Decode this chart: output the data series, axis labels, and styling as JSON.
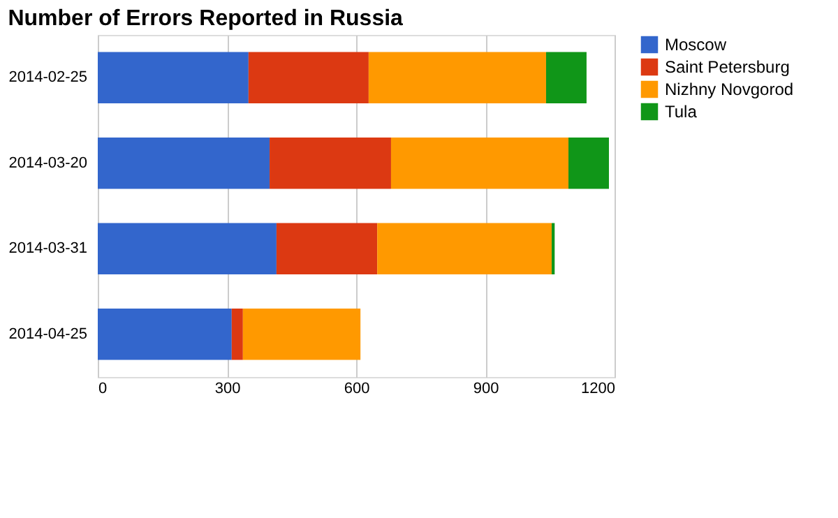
{
  "chart_data": {
    "type": "bar",
    "orientation": "horizontal",
    "stacked": true,
    "title": "Number of Errors Reported in Russia",
    "categories": [
      "2014-02-25",
      "2014-03-20",
      "2014-03-31",
      "2014-04-25"
    ],
    "series": [
      {
        "name": "Moscow",
        "color": "#3366cc",
        "values": [
          350,
          399,
          415,
          311
        ]
      },
      {
        "name": "Saint Petersburg",
        "color": "#dc3912",
        "values": [
          279,
          282,
          234,
          26
        ]
      },
      {
        "name": "Nizhny Novgorod",
        "color": "#ff9900",
        "values": [
          412,
          412,
          405,
          273
        ]
      },
      {
        "name": "Tula",
        "color": "#109618",
        "values": [
          94,
          94,
          7,
          0
        ]
      }
    ],
    "xlim": [
      0,
      1200
    ],
    "xticks": [
      0,
      300,
      600,
      900,
      1200
    ],
    "grid": "x",
    "legend": "right"
  }
}
